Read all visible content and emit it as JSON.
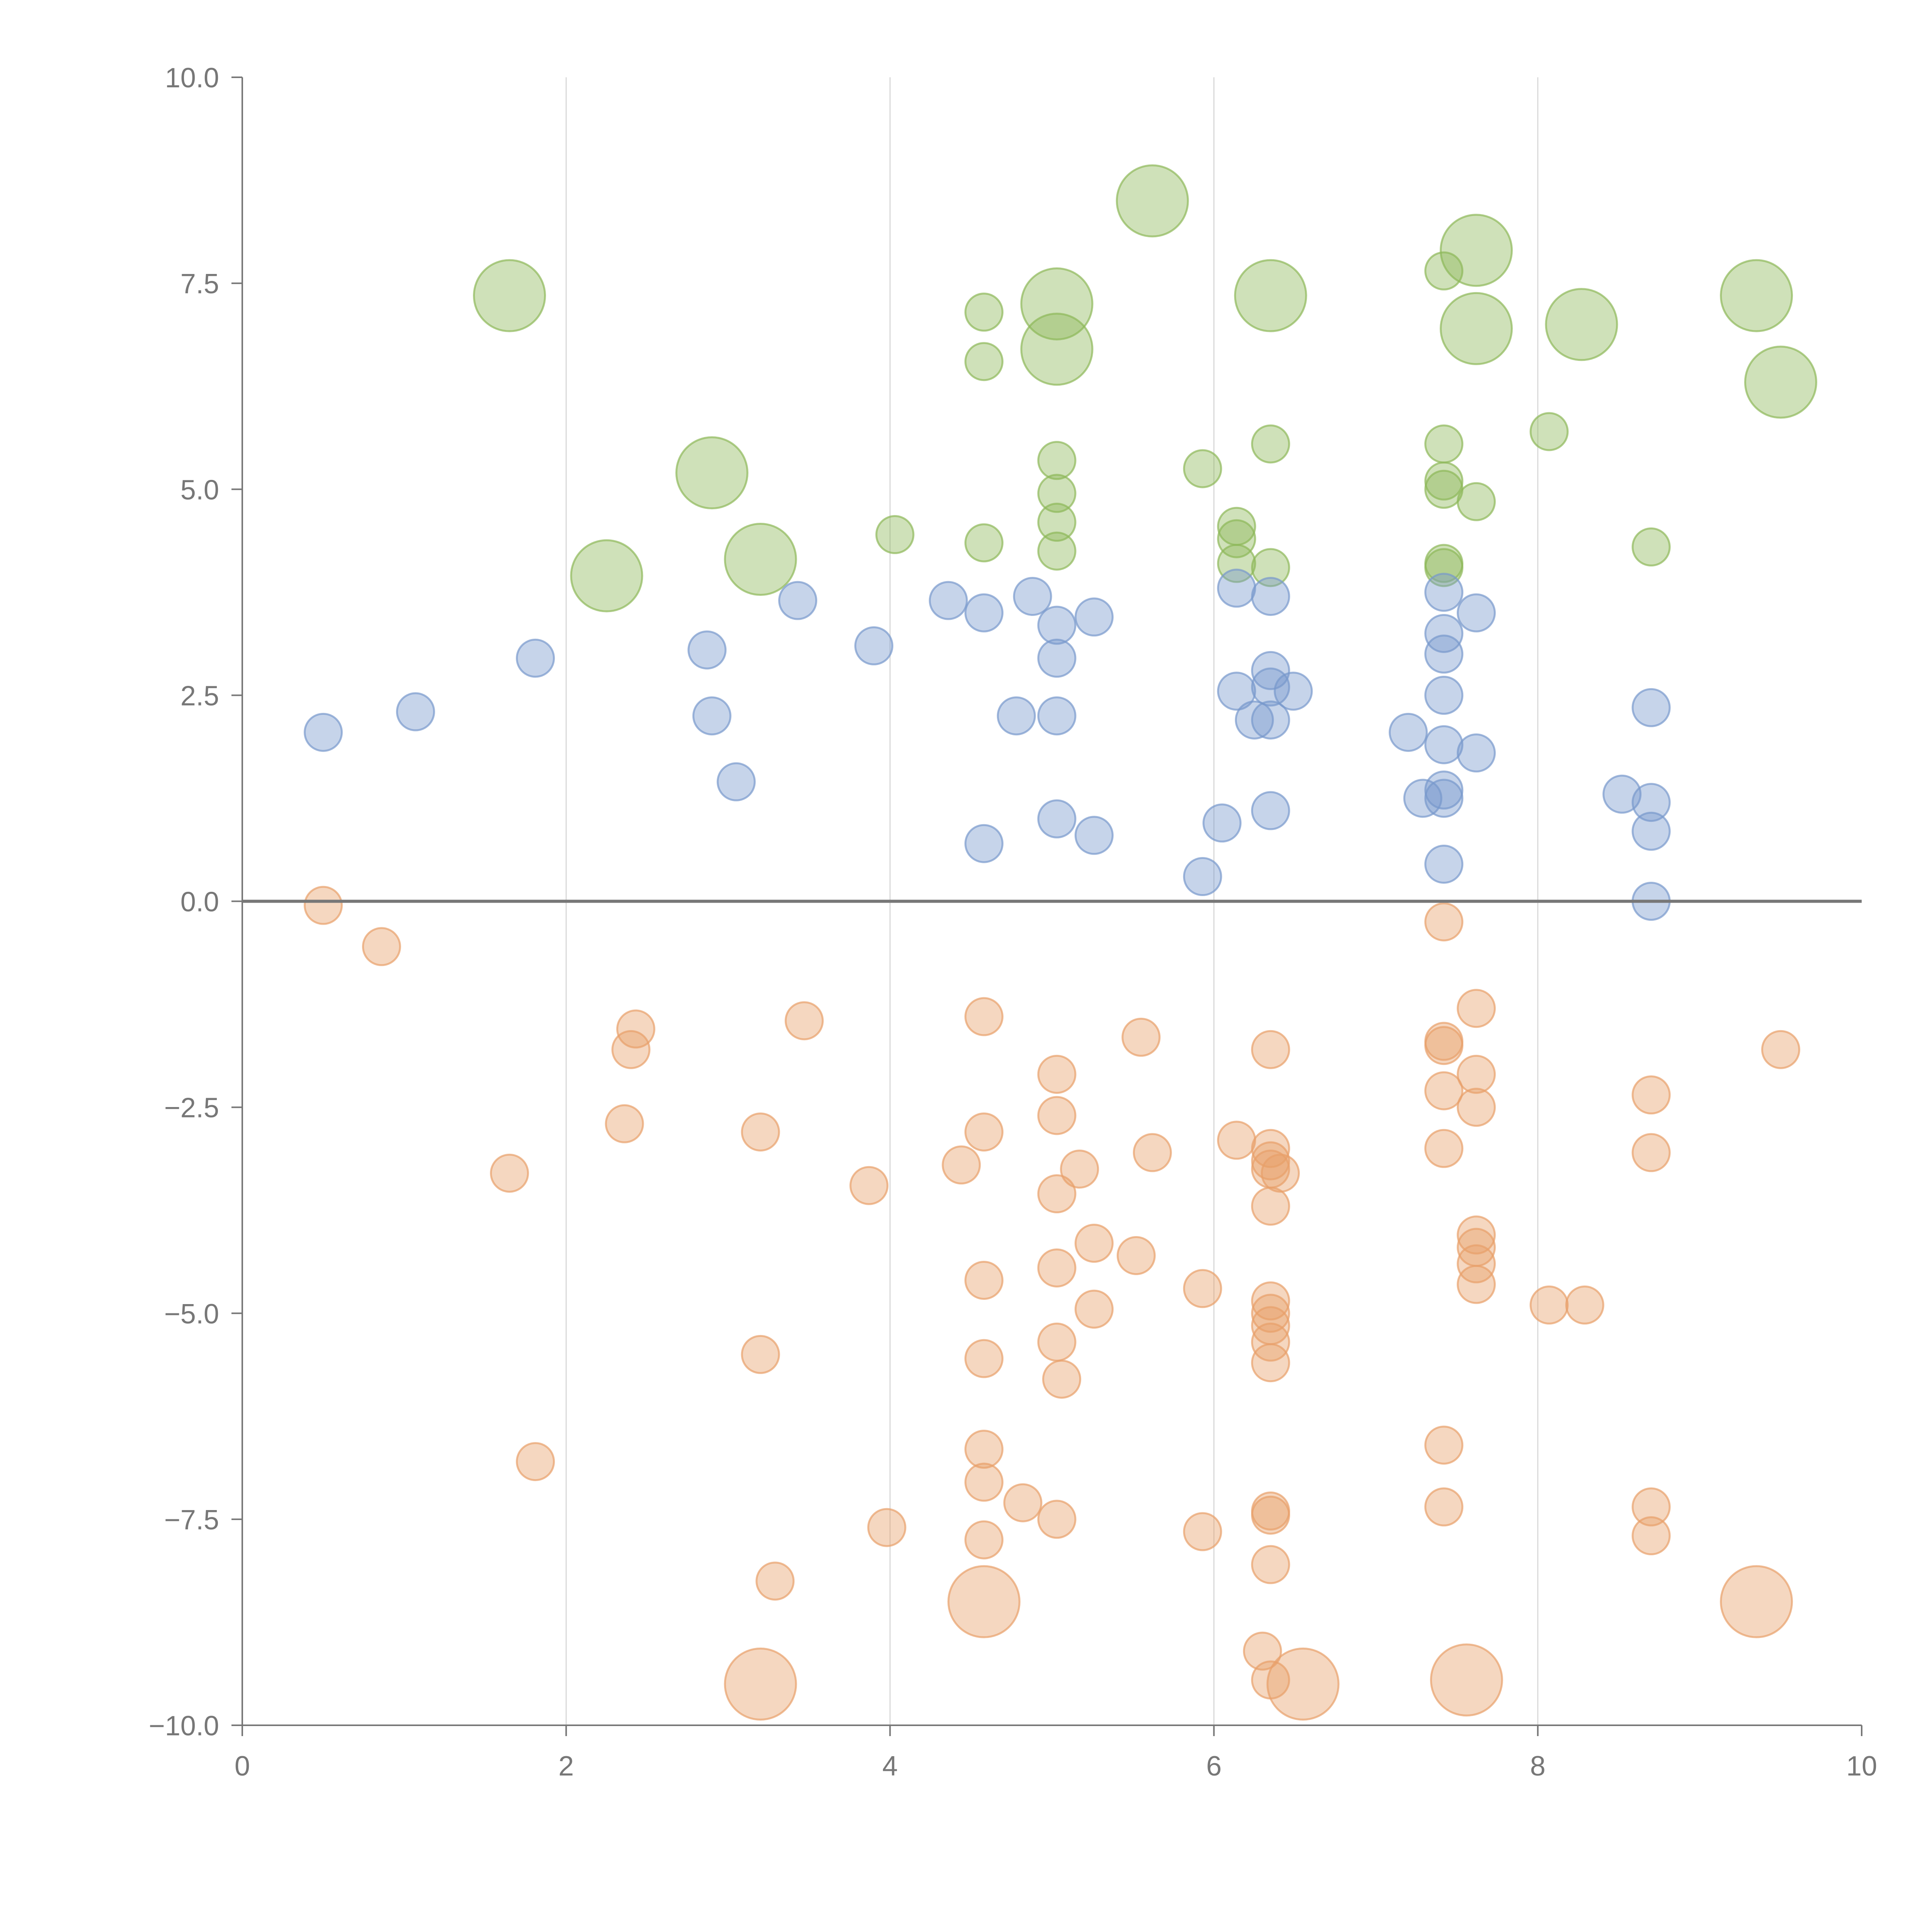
{
  "chart_data": {
    "type": "scatter",
    "title": "",
    "xlabel": "",
    "ylabel": "",
    "xlim": [
      0,
      10
    ],
    "ylim": [
      -10,
      10
    ],
    "x_ticks": [
      0,
      2,
      4,
      6,
      8,
      10
    ],
    "x_tick_labels": [
      "0",
      "2",
      "4",
      "6",
      "8",
      "10"
    ],
    "y_ticks": [
      10,
      7.5,
      5,
      2.5,
      0,
      -2.5,
      -5,
      -7.5,
      -10
    ],
    "y_tick_labels": [
      "10.0",
      "7.5",
      "5.0",
      "2.5",
      "0.0",
      "−2.5",
      "−5.0",
      "−7.5",
      "−10.0"
    ],
    "vertical_gridlines": [
      2,
      4,
      6,
      8
    ],
    "reference_line_y": 0,
    "legend": "none",
    "series": [
      {
        "name": "green",
        "color": "#8db859",
        "points": [
          {
            "x": 1.65,
            "y": 7.35,
            "size": "large"
          },
          {
            "x": 5.62,
            "y": 8.5,
            "size": "large"
          },
          {
            "x": 7.62,
            "y": 7.9,
            "size": "large"
          },
          {
            "x": 6.35,
            "y": 7.35,
            "size": "large"
          },
          {
            "x": 5.03,
            "y": 7.25,
            "size": "large"
          },
          {
            "x": 5.03,
            "y": 6.7,
            "size": "large"
          },
          {
            "x": 7.62,
            "y": 6.95,
            "size": "large"
          },
          {
            "x": 8.27,
            "y": 7.0,
            "size": "large"
          },
          {
            "x": 9.35,
            "y": 7.35,
            "size": "large"
          },
          {
            "x": 9.5,
            "y": 6.3,
            "size": "large"
          },
          {
            "x": 2.9,
            "y": 5.2,
            "size": "large"
          },
          {
            "x": 2.25,
            "y": 3.95,
            "size": "large"
          },
          {
            "x": 3.2,
            "y": 4.15,
            "size": "large"
          },
          {
            "x": 4.58,
            "y": 7.15,
            "size": "small"
          },
          {
            "x": 4.58,
            "y": 6.55,
            "size": "small"
          },
          {
            "x": 7.42,
            "y": 7.65,
            "size": "small"
          },
          {
            "x": 8.07,
            "y": 5.7,
            "size": "small"
          },
          {
            "x": 5.93,
            "y": 5.25,
            "size": "small"
          },
          {
            "x": 6.35,
            "y": 5.55,
            "size": "small"
          },
          {
            "x": 7.42,
            "y": 5.55,
            "size": "small"
          },
          {
            "x": 7.42,
            "y": 5.1,
            "size": "small"
          },
          {
            "x": 7.42,
            "y": 5.0,
            "size": "small"
          },
          {
            "x": 7.62,
            "y": 4.85,
            "size": "small"
          },
          {
            "x": 5.03,
            "y": 5.35,
            "size": "small"
          },
          {
            "x": 5.03,
            "y": 4.95,
            "size": "small"
          },
          {
            "x": 5.03,
            "y": 4.6,
            "size": "small"
          },
          {
            "x": 5.03,
            "y": 4.25,
            "size": "small"
          },
          {
            "x": 4.03,
            "y": 4.45,
            "size": "small"
          },
          {
            "x": 4.58,
            "y": 4.35,
            "size": "small"
          },
          {
            "x": 6.14,
            "y": 4.55,
            "size": "small"
          },
          {
            "x": 6.14,
            "y": 4.4,
            "size": "small"
          },
          {
            "x": 6.14,
            "y": 4.1,
            "size": "small"
          },
          {
            "x": 6.35,
            "y": 4.05,
            "size": "small"
          },
          {
            "x": 7.42,
            "y": 4.05,
            "size": "small"
          },
          {
            "x": 7.42,
            "y": 4.1,
            "size": "small"
          },
          {
            "x": 8.7,
            "y": 4.3,
            "size": "small"
          }
        ]
      },
      {
        "name": "blue",
        "color": "#7799cc",
        "points": [
          {
            "x": 0.5,
            "y": 2.05,
            "size": "small"
          },
          {
            "x": 1.07,
            "y": 2.3,
            "size": "small"
          },
          {
            "x": 1.81,
            "y": 2.95,
            "size": "small"
          },
          {
            "x": 2.87,
            "y": 3.05,
            "size": "small"
          },
          {
            "x": 2.9,
            "y": 2.25,
            "size": "small"
          },
          {
            "x": 3.05,
            "y": 1.45,
            "size": "small"
          },
          {
            "x": 3.43,
            "y": 3.65,
            "size": "small"
          },
          {
            "x": 3.9,
            "y": 3.1,
            "size": "small"
          },
          {
            "x": 4.36,
            "y": 3.65,
            "size": "small"
          },
          {
            "x": 4.58,
            "y": 3.5,
            "size": "small"
          },
          {
            "x": 4.58,
            "y": 0.7,
            "size": "small"
          },
          {
            "x": 4.78,
            "y": 2.25,
            "size": "small"
          },
          {
            "x": 4.88,
            "y": 3.7,
            "size": "small"
          },
          {
            "x": 5.03,
            "y": 3.35,
            "size": "small"
          },
          {
            "x": 5.03,
            "y": 2.95,
            "size": "small"
          },
          {
            "x": 5.03,
            "y": 2.25,
            "size": "small"
          },
          {
            "x": 5.03,
            "y": 1.0,
            "size": "small"
          },
          {
            "x": 5.26,
            "y": 3.45,
            "size": "small"
          },
          {
            "x": 5.26,
            "y": 0.8,
            "size": "small"
          },
          {
            "x": 5.93,
            "y": 0.3,
            "size": "small"
          },
          {
            "x": 6.05,
            "y": 0.95,
            "size": "small"
          },
          {
            "x": 6.14,
            "y": 3.8,
            "size": "small"
          },
          {
            "x": 6.14,
            "y": 2.55,
            "size": "small"
          },
          {
            "x": 6.25,
            "y": 2.2,
            "size": "small"
          },
          {
            "x": 6.35,
            "y": 3.7,
            "size": "small"
          },
          {
            "x": 6.35,
            "y": 2.8,
            "size": "small"
          },
          {
            "x": 6.35,
            "y": 2.6,
            "size": "small"
          },
          {
            "x": 6.35,
            "y": 2.2,
            "size": "small"
          },
          {
            "x": 6.35,
            "y": 1.1,
            "size": "small"
          },
          {
            "x": 6.49,
            "y": 2.55,
            "size": "small"
          },
          {
            "x": 7.2,
            "y": 2.05,
            "size": "small"
          },
          {
            "x": 7.29,
            "y": 1.25,
            "size": "small"
          },
          {
            "x": 7.42,
            "y": 3.75,
            "size": "small"
          },
          {
            "x": 7.42,
            "y": 3.25,
            "size": "small"
          },
          {
            "x": 7.42,
            "y": 3.0,
            "size": "small"
          },
          {
            "x": 7.42,
            "y": 2.5,
            "size": "small"
          },
          {
            "x": 7.42,
            "y": 1.9,
            "size": "small"
          },
          {
            "x": 7.42,
            "y": 1.35,
            "size": "small"
          },
          {
            "x": 7.42,
            "y": 1.25,
            "size": "small"
          },
          {
            "x": 7.42,
            "y": 0.45,
            "size": "small"
          },
          {
            "x": 7.62,
            "y": 3.5,
            "size": "small"
          },
          {
            "x": 7.62,
            "y": 1.8,
            "size": "small"
          },
          {
            "x": 8.52,
            "y": 1.3,
            "size": "small"
          },
          {
            "x": 8.7,
            "y": 2.35,
            "size": "small"
          },
          {
            "x": 8.7,
            "y": 1.2,
            "size": "small"
          },
          {
            "x": 8.7,
            "y": 0.85,
            "size": "small"
          },
          {
            "x": 8.7,
            "y": 0.0,
            "size": "small"
          }
        ]
      },
      {
        "name": "orange",
        "color": "#e8a06a",
        "points": [
          {
            "x": 0.5,
            "y": -0.05,
            "size": "small"
          },
          {
            "x": 0.86,
            "y": -0.55,
            "size": "small"
          },
          {
            "x": 1.65,
            "y": -3.3,
            "size": "small"
          },
          {
            "x": 1.81,
            "y": -6.8,
            "size": "small"
          },
          {
            "x": 2.36,
            "y": -2.7,
            "size": "small"
          },
          {
            "x": 2.4,
            "y": -1.8,
            "size": "small"
          },
          {
            "x": 2.43,
            "y": -1.55,
            "size": "small"
          },
          {
            "x": 3.2,
            "y": -2.8,
            "size": "small"
          },
          {
            "x": 3.2,
            "y": -5.5,
            "size": "small"
          },
          {
            "x": 3.29,
            "y": -8.25,
            "size": "small"
          },
          {
            "x": 3.47,
            "y": -1.45,
            "size": "small"
          },
          {
            "x": 3.87,
            "y": -3.45,
            "size": "small"
          },
          {
            "x": 3.98,
            "y": -7.6,
            "size": "small"
          },
          {
            "x": 4.44,
            "y": -3.2,
            "size": "small"
          },
          {
            "x": 4.58,
            "y": -1.4,
            "size": "small"
          },
          {
            "x": 4.58,
            "y": -2.8,
            "size": "small"
          },
          {
            "x": 4.58,
            "y": -4.6,
            "size": "small"
          },
          {
            "x": 4.58,
            "y": -5.55,
            "size": "small"
          },
          {
            "x": 4.58,
            "y": -6.65,
            "size": "small"
          },
          {
            "x": 4.58,
            "y": -7.05,
            "size": "small"
          },
          {
            "x": 4.58,
            "y": -7.75,
            "size": "small"
          },
          {
            "x": 4.82,
            "y": -7.3,
            "size": "small"
          },
          {
            "x": 5.03,
            "y": -2.1,
            "size": "small"
          },
          {
            "x": 5.03,
            "y": -2.6,
            "size": "small"
          },
          {
            "x": 5.03,
            "y": -3.55,
            "size": "small"
          },
          {
            "x": 5.03,
            "y": -4.45,
            "size": "small"
          },
          {
            "x": 5.03,
            "y": -5.35,
            "size": "small"
          },
          {
            "x": 5.06,
            "y": -5.8,
            "size": "small"
          },
          {
            "x": 5.03,
            "y": -7.5,
            "size": "small"
          },
          {
            "x": 5.17,
            "y": -3.25,
            "size": "small"
          },
          {
            "x": 5.26,
            "y": -4.15,
            "size": "small"
          },
          {
            "x": 5.26,
            "y": -4.95,
            "size": "small"
          },
          {
            "x": 5.52,
            "y": -4.3,
            "size": "small"
          },
          {
            "x": 5.55,
            "y": -1.65,
            "size": "small"
          },
          {
            "x": 5.62,
            "y": -3.05,
            "size": "small"
          },
          {
            "x": 5.93,
            "y": -4.7,
            "size": "small"
          },
          {
            "x": 5.93,
            "y": -7.65,
            "size": "small"
          },
          {
            "x": 6.14,
            "y": -2.9,
            "size": "small"
          },
          {
            "x": 6.3,
            "y": -9.1,
            "size": "small"
          },
          {
            "x": 6.35,
            "y": -1.8,
            "size": "small"
          },
          {
            "x": 6.35,
            "y": -3.0,
            "size": "small"
          },
          {
            "x": 6.35,
            "y": -3.15,
            "size": "small"
          },
          {
            "x": 6.35,
            "y": -3.25,
            "size": "small"
          },
          {
            "x": 6.41,
            "y": -3.3,
            "size": "small"
          },
          {
            "x": 6.35,
            "y": -3.7,
            "size": "small"
          },
          {
            "x": 6.35,
            "y": -4.85,
            "size": "small"
          },
          {
            "x": 6.35,
            "y": -5.0,
            "size": "small"
          },
          {
            "x": 6.35,
            "y": -5.15,
            "size": "small"
          },
          {
            "x": 6.35,
            "y": -5.35,
            "size": "small"
          },
          {
            "x": 6.35,
            "y": -5.6,
            "size": "small"
          },
          {
            "x": 6.35,
            "y": -7.4,
            "size": "small"
          },
          {
            "x": 6.35,
            "y": -7.45,
            "size": "small"
          },
          {
            "x": 6.35,
            "y": -8.05,
            "size": "small"
          },
          {
            "x": 6.35,
            "y": -9.45,
            "size": "small"
          },
          {
            "x": 7.42,
            "y": -0.25,
            "size": "small"
          },
          {
            "x": 7.42,
            "y": -1.7,
            "size": "small"
          },
          {
            "x": 7.42,
            "y": -1.75,
            "size": "small"
          },
          {
            "x": 7.42,
            "y": -2.3,
            "size": "small"
          },
          {
            "x": 7.42,
            "y": -3.0,
            "size": "small"
          },
          {
            "x": 7.42,
            "y": -6.6,
            "size": "small"
          },
          {
            "x": 7.42,
            "y": -7.35,
            "size": "small"
          },
          {
            "x": 7.62,
            "y": -1.3,
            "size": "small"
          },
          {
            "x": 7.62,
            "y": -2.1,
            "size": "small"
          },
          {
            "x": 7.62,
            "y": -2.5,
            "size": "small"
          },
          {
            "x": 7.62,
            "y": -4.05,
            "size": "small"
          },
          {
            "x": 7.62,
            "y": -4.2,
            "size": "small"
          },
          {
            "x": 7.62,
            "y": -4.4,
            "size": "small"
          },
          {
            "x": 7.62,
            "y": -4.65,
            "size": "small"
          },
          {
            "x": 8.07,
            "y": -4.9,
            "size": "small"
          },
          {
            "x": 8.29,
            "y": -4.9,
            "size": "small"
          },
          {
            "x": 8.7,
            "y": -2.35,
            "size": "small"
          },
          {
            "x": 8.7,
            "y": -3.05,
            "size": "small"
          },
          {
            "x": 8.7,
            "y": -7.35,
            "size": "small"
          },
          {
            "x": 8.7,
            "y": -7.7,
            "size": "small"
          },
          {
            "x": 9.5,
            "y": -1.8,
            "size": "small"
          },
          {
            "x": 4.58,
            "y": -8.5,
            "size": "large"
          },
          {
            "x": 3.2,
            "y": -9.5,
            "size": "large"
          },
          {
            "x": 6.55,
            "y": -9.5,
            "size": "large"
          },
          {
            "x": 7.56,
            "y": -9.45,
            "size": "large"
          },
          {
            "x": 9.35,
            "y": -8.5,
            "size": "large"
          }
        ]
      }
    ]
  }
}
